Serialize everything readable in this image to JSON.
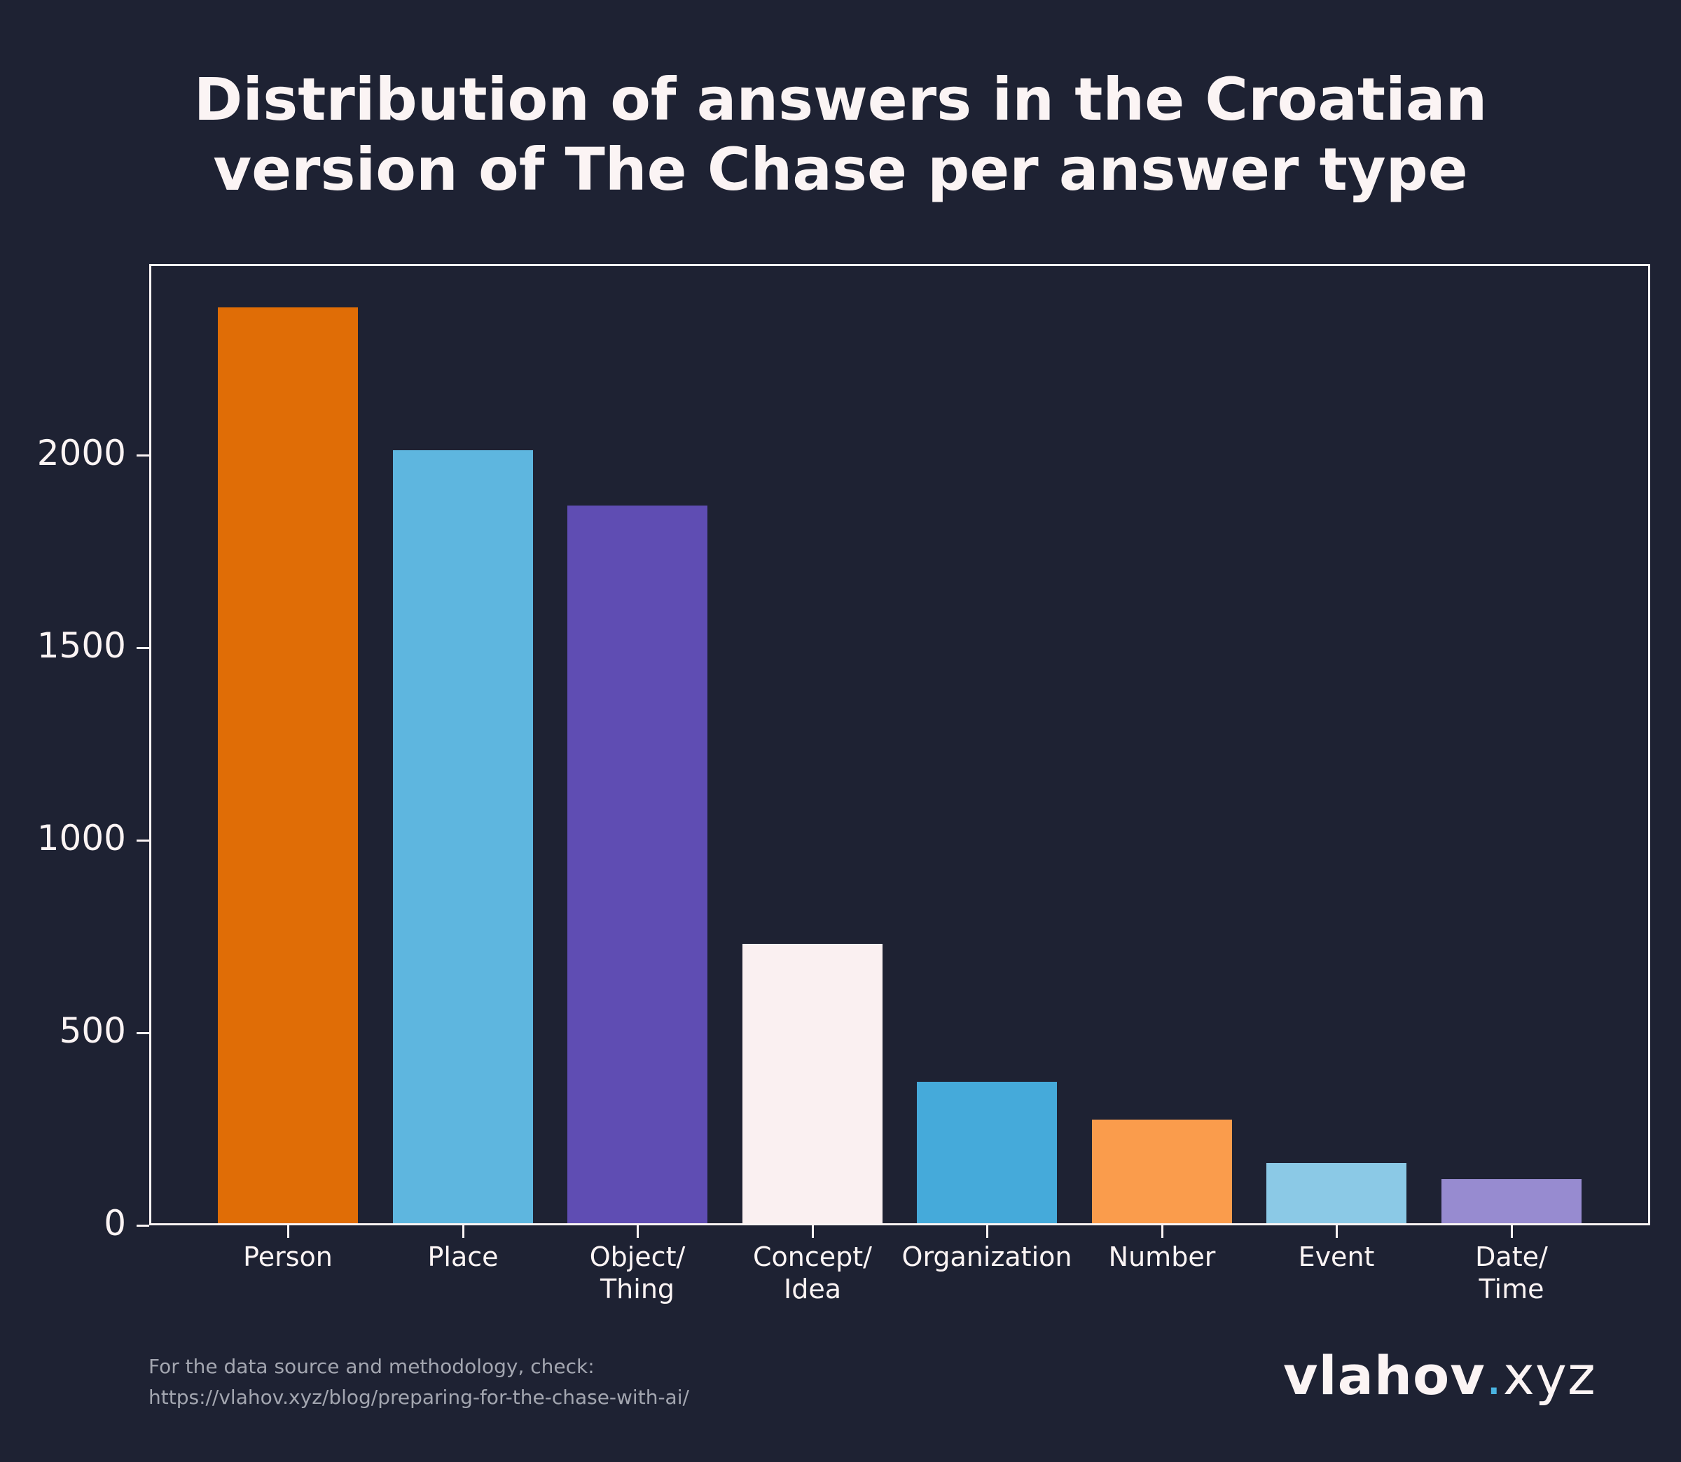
{
  "title": {
    "line1": "Distribution of answers in the Croatian",
    "line2": "version of The Chase per answer type"
  },
  "chart_data": {
    "type": "bar",
    "title": "Distribution of answers in the Croatian version of The Chase per answer type",
    "xlabel": "",
    "ylabel": "",
    "categories": [
      "Person",
      "Place",
      "Object/Thing",
      "Concept/Idea",
      "Organization",
      "Number",
      "Event",
      "Date/Time"
    ],
    "category_label_lines": [
      [
        "Person"
      ],
      [
        "Place"
      ],
      [
        "Object/",
        "Thing"
      ],
      [
        "Concept/",
        "Idea"
      ],
      [
        "Organization"
      ],
      [
        "Number"
      ],
      [
        "Event"
      ],
      [
        "Date/",
        "Time"
      ]
    ],
    "values": [
      2378,
      2007,
      1864,
      725,
      367,
      269,
      156,
      115
    ],
    "colors": [
      "#e06d06",
      "#5eb6df",
      "#5f4db3",
      "#faf0f1",
      "#45aada",
      "#fa9c4c",
      "#8bc9e6",
      "#978bd0"
    ],
    "yticks": [
      0,
      500,
      1000,
      1500,
      2000
    ],
    "ytick_labels": [
      "0",
      "500",
      "1000",
      "1500",
      "2000"
    ],
    "ylim": [
      0,
      2496
    ],
    "grid": false,
    "legend": null
  },
  "footer": {
    "note_line1": "For the data source and methodology, check:",
    "note_line2": "https://vlahov.xyz/blog/preparing-for-the-chase-with-ai/"
  },
  "logo": {
    "brand": "vlahov",
    "dot": ".",
    "tld": "xyz"
  }
}
